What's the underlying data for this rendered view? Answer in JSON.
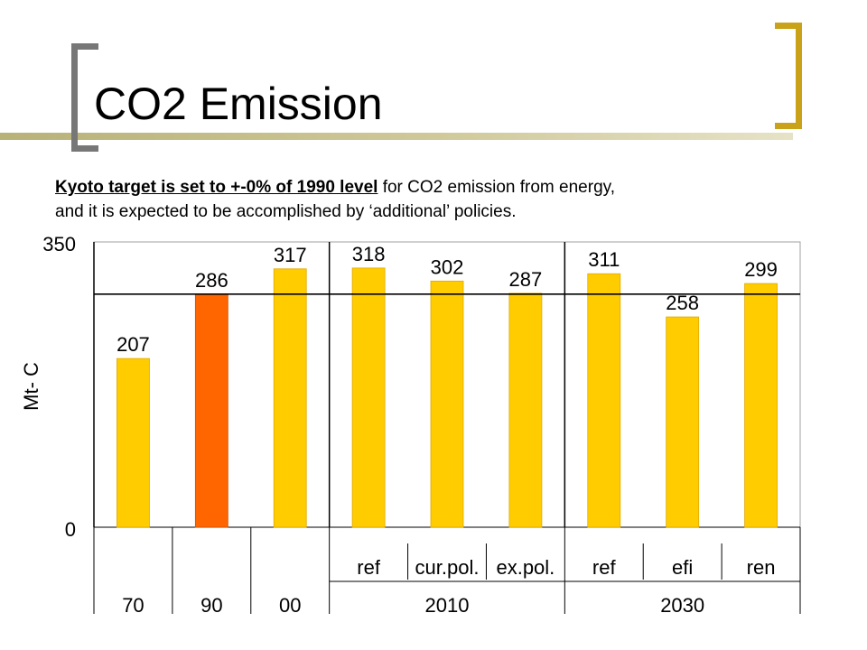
{
  "title": "CO2 Emission",
  "subtitle": {
    "emphasis": "Kyoto target is set to +-0% of 1990 level",
    "line1_rest": " for CO2 emission from energy,",
    "line2": "and it is expected to be accomplished by ‘additional’ policies."
  },
  "colors": {
    "bar_default": "#ffcc00",
    "bar_highlight": "#ff6600",
    "bracket_gold": "#c9a21a",
    "bracket_gray": "#777777"
  },
  "chart_data": {
    "type": "bar",
    "ylabel": "Mt- C",
    "ylim": [
      0,
      350
    ],
    "yticks": [
      0,
      350
    ],
    "target_line": 286,
    "groups": [
      {
        "label": "70",
        "bars": [
          {
            "category": "",
            "value": 207
          }
        ]
      },
      {
        "label": "90",
        "bars": [
          {
            "category": "",
            "value": 286,
            "highlight": true
          }
        ]
      },
      {
        "label": "00",
        "bars": [
          {
            "category": "",
            "value": 317
          }
        ]
      },
      {
        "label": "2010",
        "bars": [
          {
            "category": "ref",
            "value": 318
          },
          {
            "category": "cur.pol.",
            "value": 302
          },
          {
            "category": "ex.pol.",
            "value": 287
          }
        ]
      },
      {
        "label": "2030",
        "bars": [
          {
            "category": "ref",
            "value": 311
          },
          {
            "category": "efi",
            "value": 258
          },
          {
            "category": "ren",
            "value": 299
          }
        ]
      }
    ]
  }
}
